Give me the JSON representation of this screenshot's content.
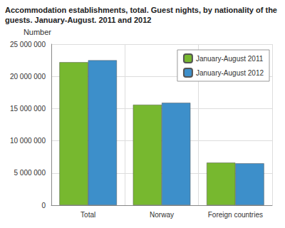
{
  "chart_data": {
    "type": "bar",
    "title": "Accommodation establishments, total. Guest nights, by nationality of the guests. January-August. 2011 and 2012",
    "y_label": "Number",
    "categories": [
      "Total",
      "Norway",
      "Foreign countries"
    ],
    "series": [
      {
        "name": "January-August 2011",
        "color": "#77b82f",
        "values": [
          22200000,
          15600000,
          6600000
        ]
      },
      {
        "name": "January-August 2012",
        "color": "#3d8fca",
        "values": [
          22500000,
          15900000,
          6500000
        ]
      }
    ],
    "ylim": [
      0,
      25000000
    ],
    "yticks": [
      0,
      {
        "value": 5000000,
        "label": "5 000 000"
      },
      {
        "value": 10000000,
        "label": "10 000 000"
      },
      {
        "value": 15000000,
        "label": "15 000 000"
      },
      {
        "value": 20000000,
        "label": "20 000 000"
      },
      {
        "value": 25000000,
        "label": "25 000 000"
      }
    ],
    "grid": true,
    "legend": "upper right"
  }
}
